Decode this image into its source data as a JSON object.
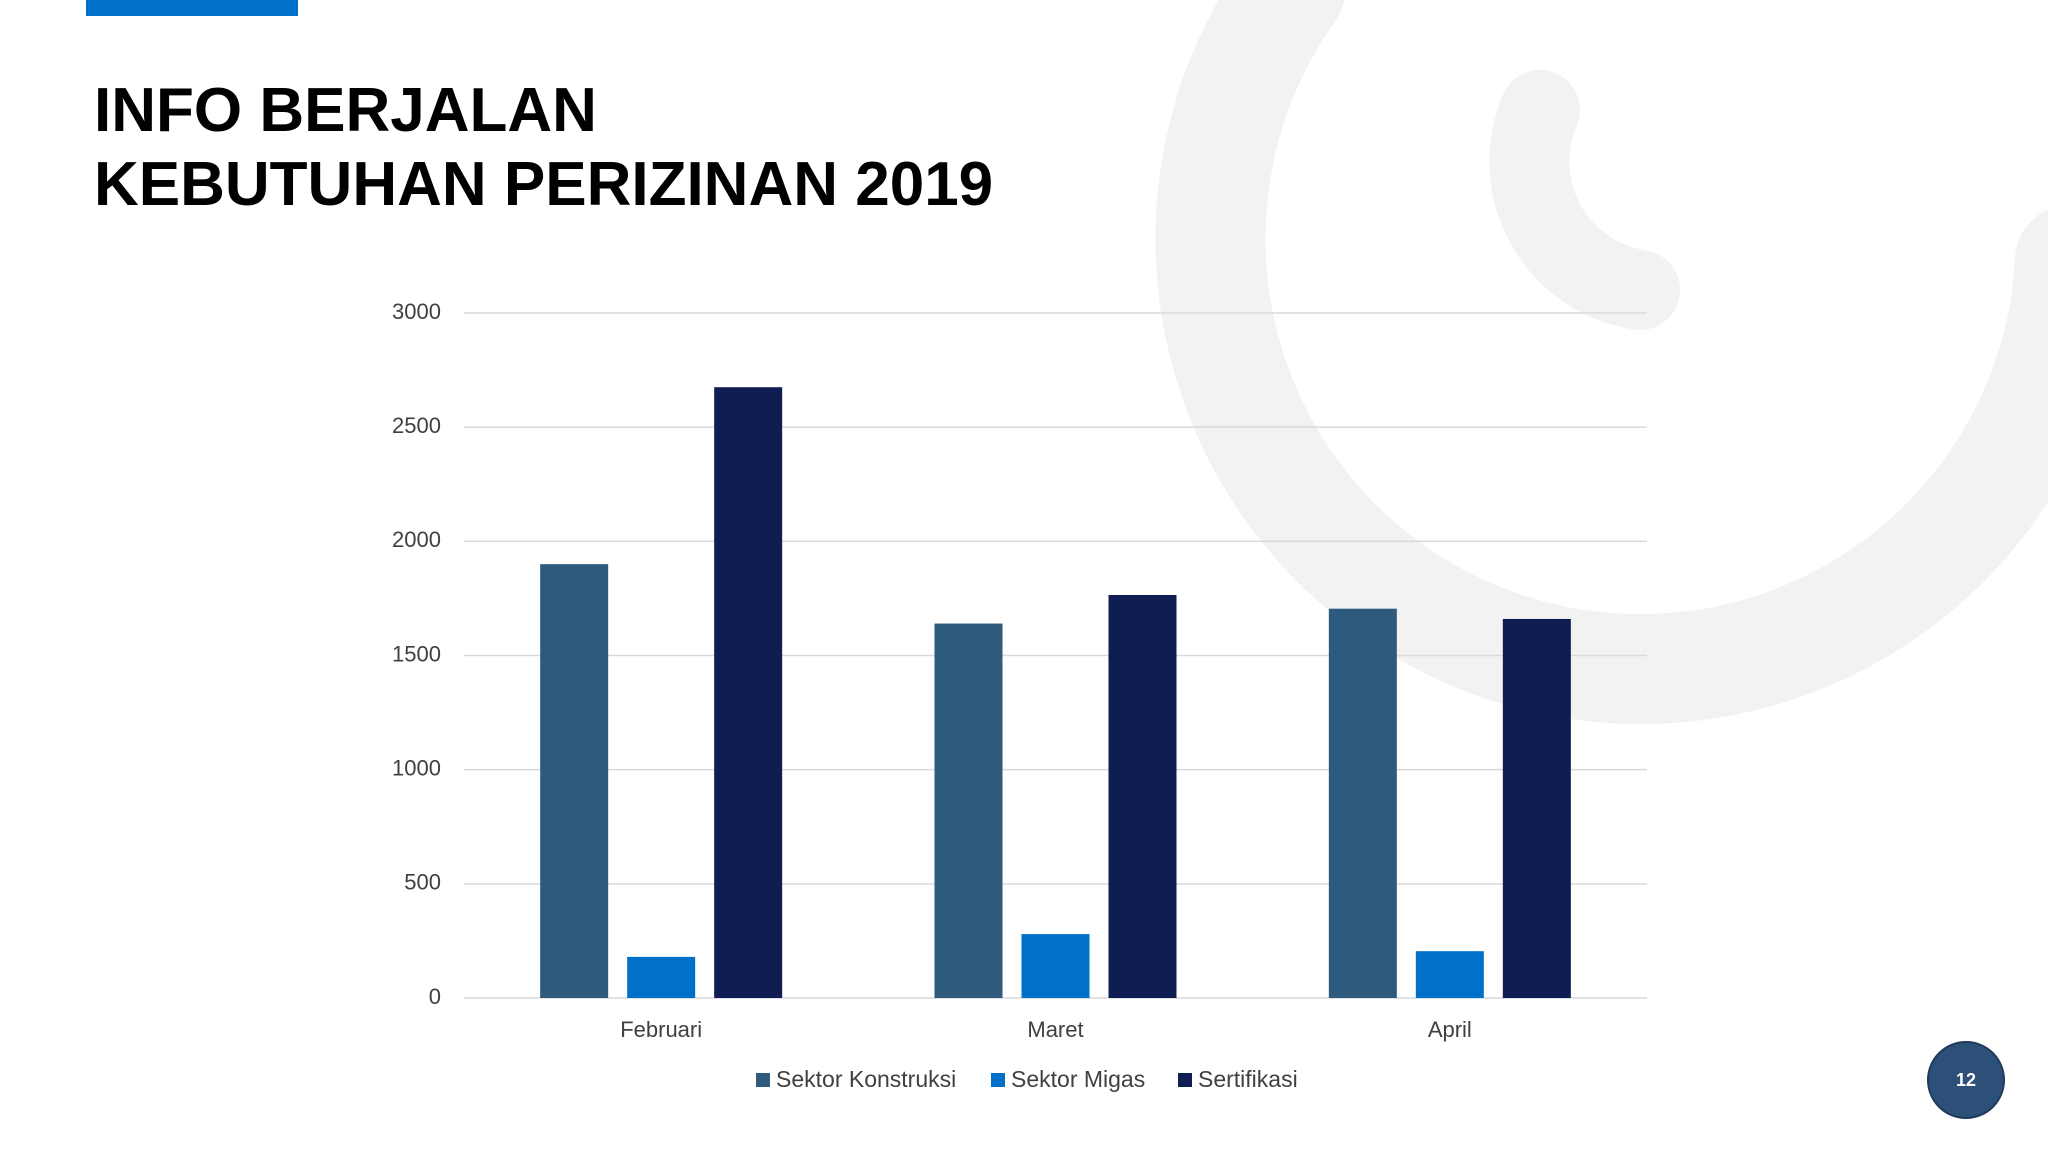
{
  "slide": {
    "title": [
      "INFO BERJALAN",
      "KEBUTUHAN PERIZINAN 2019"
    ],
    "page_number": "12"
  },
  "chart_data": {
    "type": "bar",
    "categories": [
      "Februari",
      "Maret",
      "April"
    ],
    "series": [
      {
        "name": "Sektor Konstruksi",
        "color": "#2e5a7e",
        "values": [
          1900,
          1640,
          1705
        ]
      },
      {
        "name": "Sektor Migas",
        "color": "#0070c8",
        "values": [
          180,
          280,
          205
        ]
      },
      {
        "name": "Sertifikasi",
        "color": "#0f1d52",
        "values": [
          2675,
          1765,
          1660
        ]
      }
    ],
    "ylim": [
      0,
      3000
    ],
    "yticks": [
      0,
      500,
      1000,
      1500,
      2000,
      2500,
      3000
    ],
    "grid": true,
    "legend": "bottom"
  }
}
